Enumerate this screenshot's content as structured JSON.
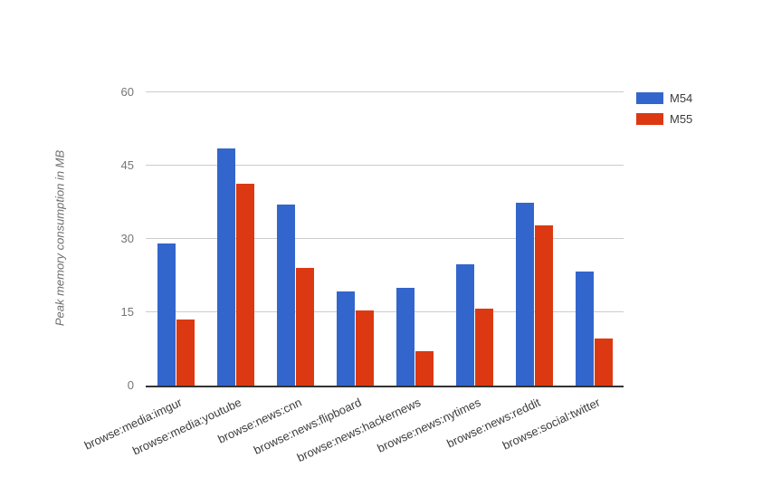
{
  "chart_data": {
    "type": "bar",
    "title": "",
    "xlabel": "",
    "ylabel": "Peak memory consumption in MB",
    "ylim": [
      0,
      60
    ],
    "yticks": [
      0,
      15,
      30,
      45,
      60
    ],
    "grid": true,
    "legend_position": "top-right",
    "categories": [
      "browse:media:imgur",
      "browse:media:youtube",
      "browse:news:cnn",
      "browse:news:flipboard",
      "browse:news:hackernews",
      "browse:news:nytimes",
      "browse:news:reddit",
      "browse:social:twitter"
    ],
    "series": [
      {
        "name": "M54",
        "color": "#3366cc",
        "values": [
          29,
          48.5,
          37,
          19.2,
          20,
          24.8,
          37.5,
          23.4
        ]
      },
      {
        "name": "M55",
        "color": "#dc3912",
        "values": [
          13.5,
          41.3,
          24,
          15.3,
          7,
          15.8,
          32.8,
          9.7
        ]
      }
    ]
  }
}
